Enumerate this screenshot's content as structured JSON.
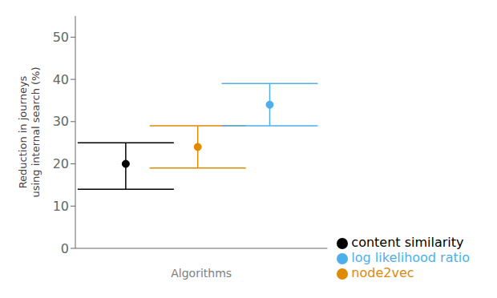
{
  "chart_data": {
    "type": "scatter",
    "xlabel": "Algorithms",
    "ylabel": "Reduction in journeys\nusing internal search (%)",
    "categories": [
      null,
      null,
      null
    ],
    "series": [
      {
        "name": "content similarity",
        "color": "#000000",
        "values": [
          20,
          null,
          null
        ],
        "lower": [
          14,
          null,
          null
        ],
        "upper": [
          25,
          null,
          null
        ]
      },
      {
        "name": "node2vec",
        "color": "#E08A00",
        "values": [
          null,
          24,
          null
        ],
        "lower": [
          null,
          19,
          null
        ],
        "upper": [
          null,
          29,
          null
        ]
      },
      {
        "name": "log likelihood ratio",
        "color": "#4DAFEA",
        "values": [
          null,
          null,
          34
        ],
        "lower": [
          null,
          null,
          29
        ],
        "upper": [
          null,
          null,
          39
        ]
      }
    ],
    "ylim": [
      0,
      55
    ],
    "yticks": [
      0,
      10,
      20,
      30,
      40,
      50
    ],
    "tick_labels": "y",
    "grid": false,
    "legend": "lower right"
  }
}
